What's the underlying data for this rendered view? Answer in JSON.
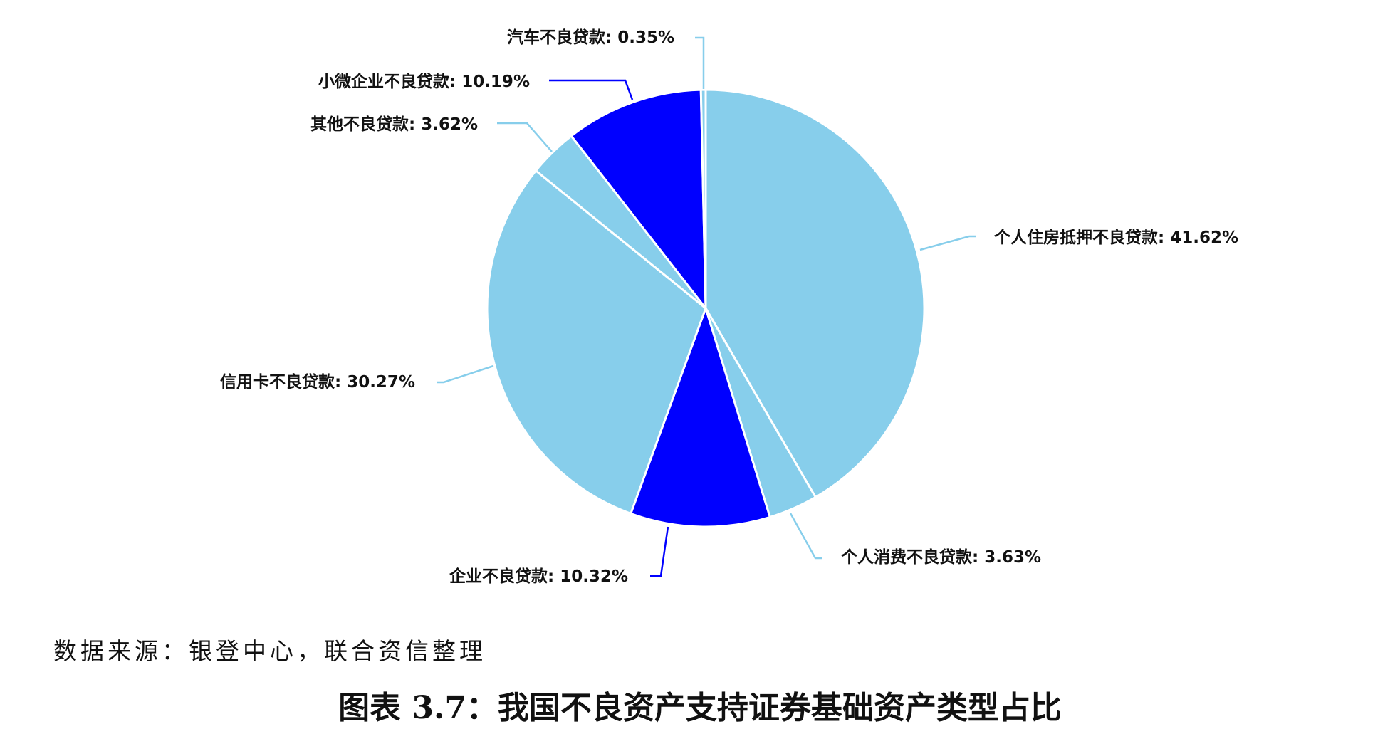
{
  "chart_data": {
    "type": "pie",
    "title": "图表 3.7：我国不良资产支持证券基础资产类型占比",
    "source": "数据来源：银登中心，联合资信整理",
    "unit": "%",
    "slices": [
      {
        "label": "个人住房抵押不良贷款",
        "value": 41.62,
        "color": "#87CEEB"
      },
      {
        "label": "个人消费不良贷款",
        "value": 3.63,
        "color": "#87CEEB"
      },
      {
        "label": "企业不良贷款",
        "value": 10.32,
        "color": "#0000FF"
      },
      {
        "label": "信用卡不良贷款",
        "value": 30.27,
        "color": "#87CEEB"
      },
      {
        "label": "其他不良贷款",
        "value": 3.62,
        "color": "#87CEEB"
      },
      {
        "label": "小微企业不良贷款",
        "value": 10.19,
        "color": "#0000FF"
      },
      {
        "label": "汽车不良贷款",
        "value": 0.35,
        "color": "#87CEEB"
      }
    ],
    "label_texts": [
      "个人住房抵押不良贷款: 41.62%",
      "个人消费不良贷款: 3.63%",
      "企业不良贷款: 10.32%",
      "信用卡不良贷款: 30.27%",
      "其他不良贷款: 3.62%",
      "小微企业不良贷款: 10.19%",
      "汽车不良贷款: 0.35%"
    ],
    "start": "top",
    "direction": "clockwise"
  }
}
